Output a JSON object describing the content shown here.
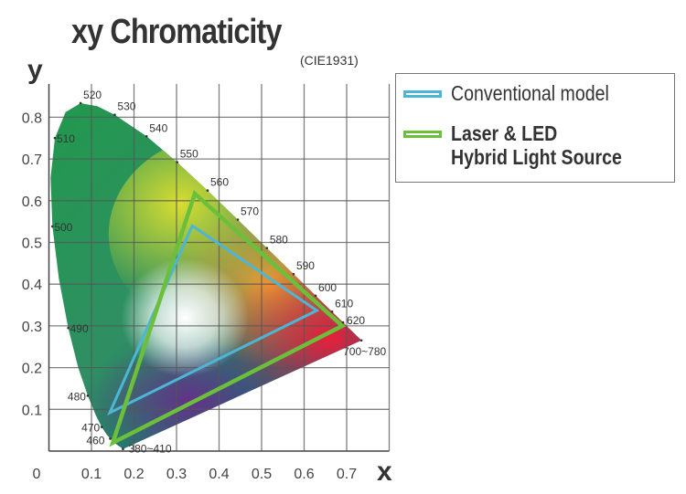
{
  "chart_data": {
    "type": "scatter",
    "title": "xy Chromaticity",
    "subtitle": "(CIE1931)",
    "xlabel": "x",
    "ylabel": "y",
    "xlim": [
      0,
      0.8
    ],
    "ylim": [
      0,
      0.88
    ],
    "grid": true,
    "x_ticks": [
      "0",
      "0.1",
      "0.2",
      "0.3",
      "0.4",
      "0.5",
      "0.6",
      "0.7"
    ],
    "y_ticks": [
      "0.1",
      "0.2",
      "0.3",
      "0.4",
      "0.5",
      "0.6",
      "0.7",
      "0.8"
    ],
    "legend_position": "right",
    "series": [
      {
        "name": "Conventional model",
        "color": "#4bb6d6",
        "points": [
          [
            0.337,
            0.54
          ],
          [
            0.63,
            0.337
          ],
          [
            0.143,
            0.092
          ]
        ]
      },
      {
        "name": "Laser & LED Hybrid Light Source",
        "name_lines": [
          "Laser & LED",
          "Hybrid Light Source"
        ],
        "color": "#6cbf3a",
        "points": [
          [
            0.343,
            0.617
          ],
          [
            0.69,
            0.3
          ],
          [
            0.15,
            0.02
          ]
        ]
      }
    ],
    "spectral_locus": [
      [
        0.1741,
        0.005
      ],
      [
        0.1566,
        0.0177
      ],
      [
        0.144,
        0.0297
      ],
      [
        0.1355,
        0.0399
      ],
      [
        0.1241,
        0.0578
      ],
      [
        0.1096,
        0.0868
      ],
      [
        0.0913,
        0.1327
      ],
      [
        0.0687,
        0.2007
      ],
      [
        0.0454,
        0.295
      ],
      [
        0.0235,
        0.4127
      ],
      [
        0.0082,
        0.5384
      ],
      [
        0.0039,
        0.6548
      ],
      [
        0.0139,
        0.7502
      ],
      [
        0.0389,
        0.812
      ],
      [
        0.0743,
        0.8338
      ],
      [
        0.1142,
        0.8262
      ],
      [
        0.1547,
        0.8059
      ],
      [
        0.2296,
        0.7543
      ],
      [
        0.3016,
        0.6923
      ],
      [
        0.3731,
        0.6245
      ],
      [
        0.4441,
        0.5547
      ],
      [
        0.5125,
        0.4866
      ],
      [
        0.5752,
        0.4242
      ],
      [
        0.627,
        0.3725
      ],
      [
        0.6658,
        0.334
      ],
      [
        0.6915,
        0.3083
      ],
      [
        0.7347,
        0.2653
      ]
    ],
    "wavelength_labels": [
      {
        "text": "520",
        "x": 0.0743,
        "y": 0.8338
      },
      {
        "text": "530",
        "x": 0.1547,
        "y": 0.8059
      },
      {
        "text": "540",
        "x": 0.2296,
        "y": 0.7543
      },
      {
        "text": "550",
        "x": 0.3016,
        "y": 0.6923
      },
      {
        "text": "560",
        "x": 0.3731,
        "y": 0.6245
      },
      {
        "text": "570",
        "x": 0.4441,
        "y": 0.5547
      },
      {
        "text": "580",
        "x": 0.5125,
        "y": 0.4866
      },
      {
        "text": "590",
        "x": 0.5752,
        "y": 0.4242
      },
      {
        "text": "600",
        "x": 0.627,
        "y": 0.3725
      },
      {
        "text": "610",
        "x": 0.6658,
        "y": 0.334
      },
      {
        "text": "620",
        "x": 0.6915,
        "y": 0.3083
      },
      {
        "text": "700~780",
        "x": 0.7347,
        "y": 0.2653
      },
      {
        "text": "510",
        "x": 0.0139,
        "y": 0.7502
      },
      {
        "text": "500",
        "x": 0.0082,
        "y": 0.5384
      },
      {
        "text": "490",
        "x": 0.0454,
        "y": 0.295
      },
      {
        "text": "480",
        "x": 0.0913,
        "y": 0.1327
      },
      {
        "text": "470",
        "x": 0.1241,
        "y": 0.0578
      },
      {
        "text": "460",
        "x": 0.144,
        "y": 0.0297
      },
      {
        "text": "380~410",
        "x": 0.1741,
        "y": 0.005
      }
    ]
  }
}
